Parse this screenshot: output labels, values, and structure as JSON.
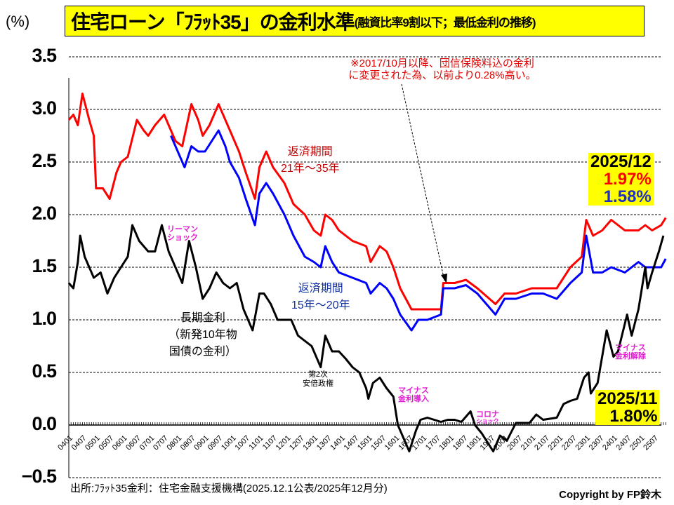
{
  "header": {
    "unit": "(%)",
    "title_main": "住宅ローン「ﾌﾗｯﾄ35」の金利水準",
    "title_sub": "(融資比率9割以下；最低金利の推移)"
  },
  "notes": {
    "insurance_line1": "※2017/10月以降、団信保険料込の金利",
    "insurance_line2": "に変更された為、以前より0.28%高い。"
  },
  "labels": {
    "red_series_l1": "返済期間",
    "red_series_l2": "21年～35年",
    "blue_series_l1": "返済期間",
    "blue_series_l2": "15年～20年",
    "black_series_l1": "長期金利",
    "black_series_l2": "（新発10年物",
    "black_series_l3": "国債の金利）",
    "lehman_l1": "リーマン",
    "lehman_l2": "ショック",
    "abe_l1": "第2次",
    "abe_l2": "安倍政権",
    "negative_intro_l1": "マイナス",
    "negative_intro_l2": "金利導入",
    "corona_l1": "コロナ",
    "corona_l2": "ショック",
    "negative_end_l1": "マイナス",
    "negative_end_l2": "金利解除"
  },
  "latest": {
    "flat_date": "2025/12",
    "flat_red_value": "1.97%",
    "flat_blue_value": "1.58%",
    "jgb_date": "2025/11",
    "jgb_value": "1.80%"
  },
  "footer": {
    "source": "出所:ﾌﾗｯﾄ35金利：住宅金融支援機構(2025.12.1公表/2025年12月分)",
    "copyright": "Copyright by FP鈴木"
  },
  "colors": {
    "red": "#ff0000",
    "blue": "#0000ff",
    "black": "#000000",
    "highlight": "#ffff00",
    "annotation": "#e020d0"
  },
  "chart_data": {
    "type": "line",
    "title": "住宅ローン「ﾌﾗｯﾄ35」の金利水準(融資比率9割以下；最低金利の推移)",
    "ylabel": "(%)",
    "ylim": [
      -0.5,
      3.5
    ],
    "yticks": [
      "3.5",
      "3.0",
      "2.5",
      "2.0",
      "1.5",
      "1.0",
      "0.5",
      "0.0",
      "−0.5"
    ],
    "xticks": [
      "0401",
      "0407",
      "0501",
      "0507",
      "0601",
      "0607",
      "0701",
      "0707",
      "0801",
      "0807",
      "0901",
      "0907",
      "1001",
      "1007",
      "1101",
      "1107",
      "1201",
      "1207",
      "1301",
      "1307",
      "1401",
      "1407",
      "1501",
      "1507",
      "1601",
      "1607",
      "1701",
      "1707",
      "1801",
      "1807",
      "1901",
      "1907",
      "2001",
      "2007",
      "2101",
      "2107",
      "2201",
      "2207",
      "2301",
      "2307",
      "2401",
      "2407",
      "2501",
      "2507"
    ],
    "grid": true,
    "series": [
      {
        "name": "返済期間21年～35年",
        "color": "red",
        "points": [
          [
            "2004/01",
            2.9
          ],
          [
            "2004/03",
            2.95
          ],
          [
            "2004/05",
            2.85
          ],
          [
            "2004/07",
            3.15
          ],
          [
            "2004/10",
            2.9
          ],
          [
            "2004/12",
            2.75
          ],
          [
            "2005/01",
            2.25
          ],
          [
            "2005/04",
            2.25
          ],
          [
            "2005/07",
            2.15
          ],
          [
            "2005/10",
            2.4
          ],
          [
            "2005/12",
            2.5
          ],
          [
            "2006/03",
            2.55
          ],
          [
            "2006/07",
            2.9
          ],
          [
            "2006/10",
            2.8
          ],
          [
            "2006/12",
            2.75
          ],
          [
            "2007/03",
            2.85
          ],
          [
            "2007/07",
            2.95
          ],
          [
            "2007/10",
            2.8
          ],
          [
            "2007/12",
            2.7
          ],
          [
            "2008/03",
            2.65
          ],
          [
            "2008/07",
            3.05
          ],
          [
            "2008/10",
            2.9
          ],
          [
            "2008/12",
            2.75
          ],
          [
            "2009/03",
            2.85
          ],
          [
            "2009/07",
            3.05
          ],
          [
            "2009/10",
            2.9
          ],
          [
            "2009/12",
            2.8
          ],
          [
            "2010/04",
            2.6
          ],
          [
            "2010/07",
            2.4
          ],
          [
            "2010/11",
            2.15
          ],
          [
            "2011/01",
            2.45
          ],
          [
            "2011/04",
            2.6
          ],
          [
            "2011/07",
            2.45
          ],
          [
            "2011/12",
            2.3
          ],
          [
            "2012/04",
            2.1
          ],
          [
            "2012/09",
            2.0
          ],
          [
            "2013/01",
            1.85
          ],
          [
            "2013/04",
            1.8
          ],
          [
            "2013/06",
            2.0
          ],
          [
            "2013/09",
            1.95
          ],
          [
            "2013/12",
            1.85
          ],
          [
            "2014/06",
            1.75
          ],
          [
            "2014/12",
            1.7
          ],
          [
            "2015/02",
            1.55
          ],
          [
            "2015/06",
            1.7
          ],
          [
            "2015/09",
            1.65
          ],
          [
            "2015/12",
            1.5
          ],
          [
            "2016/03",
            1.3
          ],
          [
            "2016/08",
            1.1
          ],
          [
            "2016/11",
            1.1
          ],
          [
            "2017/03",
            1.1
          ],
          [
            "2017/09",
            1.1
          ],
          [
            "2017/10",
            1.35
          ],
          [
            "2018/03",
            1.35
          ],
          [
            "2018/08",
            1.38
          ],
          [
            "2019/01",
            1.3
          ],
          [
            "2019/09",
            1.15
          ],
          [
            "2020/01",
            1.25
          ],
          [
            "2020/06",
            1.25
          ],
          [
            "2021/01",
            1.3
          ],
          [
            "2021/06",
            1.3
          ],
          [
            "2021/12",
            1.3
          ],
          [
            "2022/06",
            1.5
          ],
          [
            "2022/11",
            1.6
          ],
          [
            "2023/01",
            1.95
          ],
          [
            "2023/04",
            1.8
          ],
          [
            "2023/08",
            1.85
          ],
          [
            "2023/12",
            1.95
          ],
          [
            "2024/06",
            1.85
          ],
          [
            "2024/12",
            1.85
          ],
          [
            "2025/03",
            1.9
          ],
          [
            "2025/06",
            1.85
          ],
          [
            "2025/10",
            1.9
          ],
          [
            "2025/12",
            1.97
          ]
        ]
      },
      {
        "name": "返済期間15年～20年",
        "color": "blue",
        "points": [
          [
            "2007/10",
            2.75
          ],
          [
            "2008/01",
            2.6
          ],
          [
            "2008/04",
            2.45
          ],
          [
            "2008/07",
            2.65
          ],
          [
            "2008/10",
            2.6
          ],
          [
            "2009/01",
            2.6
          ],
          [
            "2009/07",
            2.8
          ],
          [
            "2009/10",
            2.65
          ],
          [
            "2009/12",
            2.5
          ],
          [
            "2010/04",
            2.35
          ],
          [
            "2010/07",
            2.15
          ],
          [
            "2010/11",
            1.9
          ],
          [
            "2011/01",
            2.2
          ],
          [
            "2011/04",
            2.3
          ],
          [
            "2011/07",
            2.2
          ],
          [
            "2011/12",
            2.0
          ],
          [
            "2012/04",
            1.8
          ],
          [
            "2012/09",
            1.6
          ],
          [
            "2013/01",
            1.55
          ],
          [
            "2013/04",
            1.5
          ],
          [
            "2013/06",
            1.7
          ],
          [
            "2013/09",
            1.55
          ],
          [
            "2013/12",
            1.45
          ],
          [
            "2014/06",
            1.4
          ],
          [
            "2014/12",
            1.35
          ],
          [
            "2015/02",
            1.25
          ],
          [
            "2015/06",
            1.35
          ],
          [
            "2015/09",
            1.3
          ],
          [
            "2015/12",
            1.2
          ],
          [
            "2016/03",
            1.05
          ],
          [
            "2016/08",
            0.9
          ],
          [
            "2016/11",
            1.0
          ],
          [
            "2017/03",
            1.0
          ],
          [
            "2017/09",
            1.05
          ],
          [
            "2017/10",
            1.3
          ],
          [
            "2018/03",
            1.3
          ],
          [
            "2018/08",
            1.33
          ],
          [
            "2019/01",
            1.25
          ],
          [
            "2019/09",
            1.05
          ],
          [
            "2020/01",
            1.2
          ],
          [
            "2020/06",
            1.2
          ],
          [
            "2021/01",
            1.25
          ],
          [
            "2021/06",
            1.25
          ],
          [
            "2021/12",
            1.2
          ],
          [
            "2022/06",
            1.35
          ],
          [
            "2022/11",
            1.45
          ],
          [
            "2023/01",
            1.8
          ],
          [
            "2023/04",
            1.45
          ],
          [
            "2023/08",
            1.45
          ],
          [
            "2023/12",
            1.5
          ],
          [
            "2024/06",
            1.45
          ],
          [
            "2024/12",
            1.55
          ],
          [
            "2025/03",
            1.5
          ],
          [
            "2025/06",
            1.5
          ],
          [
            "2025/10",
            1.5
          ],
          [
            "2025/12",
            1.58
          ]
        ]
      },
      {
        "name": "長期金利(新発10年物国債の金利)",
        "color": "black",
        "points": [
          [
            "2004/01",
            1.35
          ],
          [
            "2004/03",
            1.3
          ],
          [
            "2004/05",
            1.55
          ],
          [
            "2004/06",
            1.8
          ],
          [
            "2004/08",
            1.6
          ],
          [
            "2004/12",
            1.4
          ],
          [
            "2005/03",
            1.45
          ],
          [
            "2005/06",
            1.25
          ],
          [
            "2005/09",
            1.4
          ],
          [
            "2005/12",
            1.5
          ],
          [
            "2006/03",
            1.6
          ],
          [
            "2006/05",
            1.9
          ],
          [
            "2006/08",
            1.75
          ],
          [
            "2006/12",
            1.65
          ],
          [
            "2007/03",
            1.65
          ],
          [
            "2007/06",
            1.9
          ],
          [
            "2007/09",
            1.65
          ],
          [
            "2007/12",
            1.5
          ],
          [
            "2008/03",
            1.35
          ],
          [
            "2008/06",
            1.75
          ],
          [
            "2008/09",
            1.5
          ],
          [
            "2008/12",
            1.2
          ],
          [
            "2009/03",
            1.3
          ],
          [
            "2009/06",
            1.45
          ],
          [
            "2009/09",
            1.35
          ],
          [
            "2009/12",
            1.3
          ],
          [
            "2010/03",
            1.35
          ],
          [
            "2010/06",
            1.1
          ],
          [
            "2010/10",
            0.9
          ],
          [
            "2011/01",
            1.25
          ],
          [
            "2011/03",
            1.25
          ],
          [
            "2011/06",
            1.15
          ],
          [
            "2011/09",
            1.0
          ],
          [
            "2011/12",
            1.0
          ],
          [
            "2012/03",
            1.0
          ],
          [
            "2012/06",
            0.85
          ],
          [
            "2012/09",
            0.8
          ],
          [
            "2012/12",
            0.75
          ],
          [
            "2013/04",
            0.55
          ],
          [
            "2013/06",
            0.85
          ],
          [
            "2013/09",
            0.7
          ],
          [
            "2013/12",
            0.7
          ],
          [
            "2014/03",
            0.63
          ],
          [
            "2014/06",
            0.55
          ],
          [
            "2014/09",
            0.5
          ],
          [
            "2014/12",
            0.35
          ],
          [
            "2015/01",
            0.25
          ],
          [
            "2015/03",
            0.4
          ],
          [
            "2015/06",
            0.45
          ],
          [
            "2015/09",
            0.35
          ],
          [
            "2015/12",
            0.27
          ],
          [
            "2016/02",
            0.0
          ],
          [
            "2016/04",
            -0.1
          ],
          [
            "2016/07",
            -0.25
          ],
          [
            "2016/10",
            -0.05
          ],
          [
            "2016/12",
            0.05
          ],
          [
            "2017/03",
            0.07
          ],
          [
            "2017/06",
            0.05
          ],
          [
            "2017/09",
            0.03
          ],
          [
            "2017/12",
            0.05
          ],
          [
            "2018/03",
            0.05
          ],
          [
            "2018/06",
            0.03
          ],
          [
            "2018/10",
            0.13
          ],
          [
            "2018/12",
            0.0
          ],
          [
            "2019/03",
            -0.08
          ],
          [
            "2019/08",
            -0.25
          ],
          [
            "2019/11",
            -0.1
          ],
          [
            "2020/02",
            -0.15
          ],
          [
            "2020/06",
            0.02
          ],
          [
            "2020/12",
            0.02
          ],
          [
            "2021/03",
            0.1
          ],
          [
            "2021/06",
            0.05
          ],
          [
            "2021/12",
            0.07
          ],
          [
            "2022/03",
            0.2
          ],
          [
            "2022/06",
            0.23
          ],
          [
            "2022/09",
            0.25
          ],
          [
            "2022/12",
            0.45
          ],
          [
            "2023/02",
            0.5
          ],
          [
            "2023/03",
            0.3
          ],
          [
            "2023/06",
            0.4
          ],
          [
            "2023/10",
            0.9
          ],
          [
            "2024/01",
            0.65
          ],
          [
            "2024/03",
            0.7
          ],
          [
            "2024/07",
            1.05
          ],
          [
            "2024/09",
            0.85
          ],
          [
            "2024/12",
            1.1
          ],
          [
            "2025/03",
            1.5
          ],
          [
            "2025/04",
            1.3
          ],
          [
            "2025/06",
            1.45
          ],
          [
            "2025/09",
            1.65
          ],
          [
            "2025/11",
            1.8
          ]
        ]
      }
    ]
  }
}
